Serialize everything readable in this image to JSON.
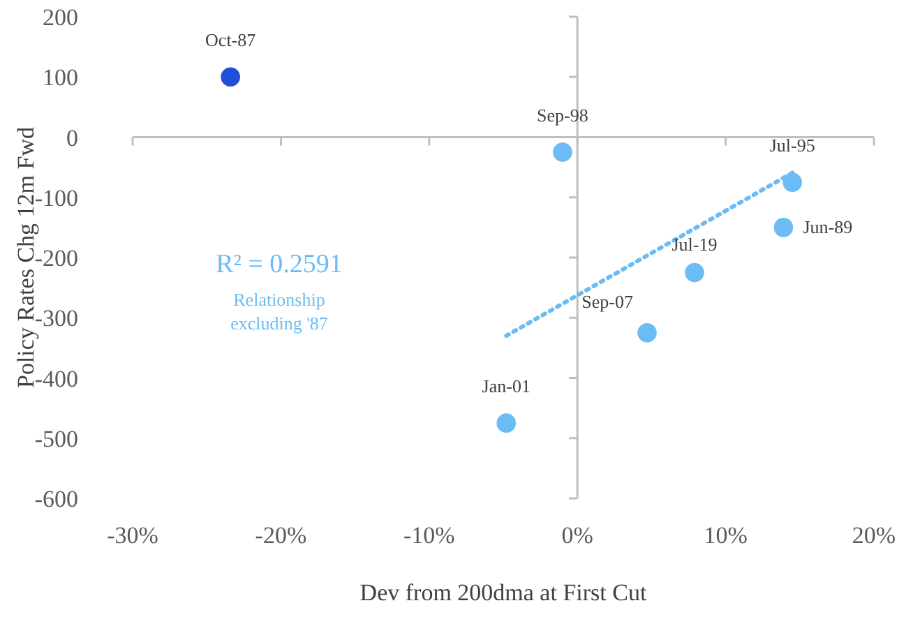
{
  "chart_data": {
    "type": "scatter",
    "xlabel": "Dev from 200dma at First Cut",
    "ylabel": "Policy Rates Chg 12m Fwd",
    "xlim": [
      -30,
      20
    ],
    "xticks": [
      {
        "value": -30,
        "label": "-30%"
      },
      {
        "value": -20,
        "label": "-20%"
      },
      {
        "value": -10,
        "label": "-10%"
      },
      {
        "value": 0,
        "label": "0%"
      },
      {
        "value": 10,
        "label": "10%"
      },
      {
        "value": 20,
        "label": "20%"
      }
    ],
    "ylim": [
      -600,
      200
    ],
    "yticks": [
      200,
      100,
      0,
      -100,
      -200,
      -300,
      -400,
      -500,
      -600
    ],
    "marker": "circle",
    "series": [
      {
        "color": "#1f4fd8",
        "x": [
          -23.4
        ],
        "values": [
          100
        ]
      },
      {
        "color": "#6bbcf5",
        "x": [
          -1,
          14.5,
          13.9,
          7.9,
          4.7,
          -4.8
        ],
        "values": [
          -25,
          -75,
          -150,
          -225,
          -325,
          -475
        ]
      },
      {
        "type": "line",
        "color": "#6bbcf5",
        "line_style": "dotted",
        "marker": "none",
        "x": [
          -4.8,
          14.8
        ],
        "values": [
          -330,
          -55
        ]
      }
    ],
    "annotations": [
      {
        "text": "Oct-87",
        "x": -23.4,
        "y": 100
      },
      {
        "text": "Sep-98",
        "x": -1,
        "y": -25
      },
      {
        "text": "Jul-95",
        "x": 14.5,
        "y": -75
      },
      {
        "text": "Jun-89",
        "x": 13.9,
        "y": -150
      },
      {
        "text": "Jul-19",
        "x": 7.9,
        "y": -225
      },
      {
        "text": "Sep-07",
        "x": 4.7,
        "y": -325
      },
      {
        "text": "Jan-01",
        "x": -4.8,
        "y": -475
      },
      "R² = 0.2591",
      "Relationship excluding '87"
    ]
  }
}
